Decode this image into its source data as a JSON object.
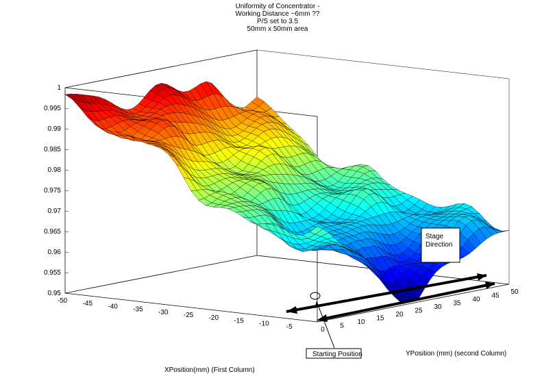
{
  "chart_data": {
    "type": "surface",
    "title_lines": [
      "Uniformity of Concentrator  -",
      "Working Distance ~6mm ??",
      "P/S set to 3.5",
      "50mm x 50mm area"
    ],
    "xlabel": "XPosition(mm) (First Column)",
    "ylabel": "YPosition (mm) (second Column)",
    "xlim": [
      -50,
      0
    ],
    "ylim": [
      0,
      50
    ],
    "zlim": [
      0.95,
      1.0
    ],
    "x_ticks": [
      "-50",
      "-45",
      "-40",
      "-35",
      "-30",
      "-25",
      "-20",
      "-15",
      "-10",
      "-5"
    ],
    "y_ticks": [
      "0",
      "5",
      "10",
      "15",
      "20",
      "25",
      "30",
      "35",
      "40",
      "45",
      "50"
    ],
    "z_ticks": [
      "0.95",
      "0.955",
      "0.96",
      "0.965",
      "0.97",
      "0.975",
      "0.98",
      "0.985",
      "0.99",
      "0.995",
      "1"
    ],
    "grid": true,
    "colormap": "jet",
    "z_grid_samples": {
      "x_values": [
        -50,
        -37.5,
        -25,
        -12.5,
        0
      ],
      "y_values": [
        0,
        12.5,
        25,
        37.5,
        50
      ],
      "z": [
        [
          0.997,
          0.995,
          0.994,
          0.993,
          0.988
        ],
        [
          0.99,
          0.986,
          0.982,
          0.98,
          0.977
        ],
        [
          0.98,
          0.975,
          0.972,
          0.972,
          0.97
        ],
        [
          0.972,
          0.966,
          0.963,
          0.966,
          0.968
        ],
        [
          0.972,
          0.962,
          0.951,
          0.958,
          0.965
        ]
      ]
    },
    "annotations": {
      "stage_direction": "Stage Direction",
      "starting_position": "Starting Position"
    }
  }
}
